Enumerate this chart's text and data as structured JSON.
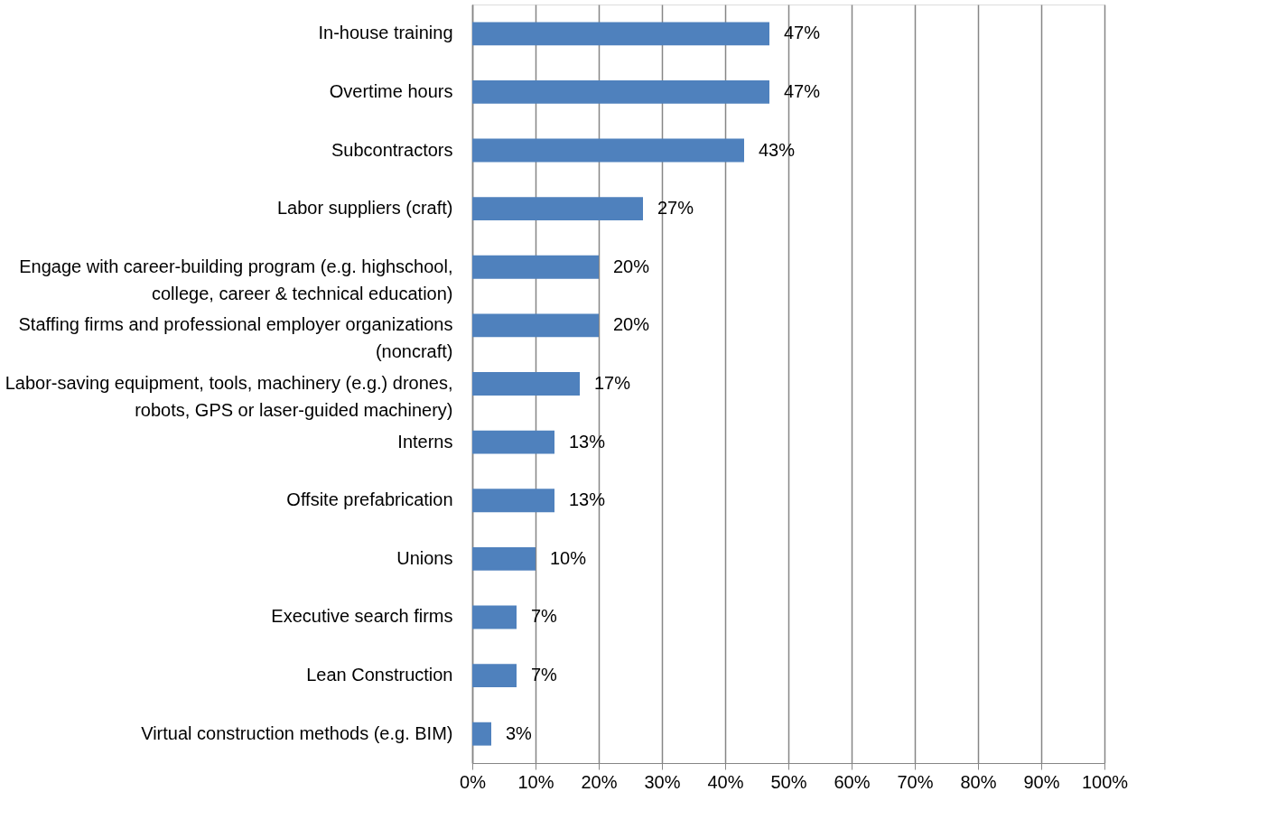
{
  "chart_data": {
    "type": "bar",
    "orientation": "horizontal",
    "categories": [
      "In-house training",
      "Overtime hours",
      "Subcontractors",
      "Labor suppliers (craft)",
      "Engage with career-building program (e.g. highschool,\ncollege, career & technical education)",
      "Staffing firms and professional employer organizations\n(noncraft)",
      "Labor-saving equipment, tools, machinery (e.g.) drones,\nrobots, GPS or laser-guided machinery)",
      "Interns",
      "Offsite prefabrication",
      "Unions",
      "Executive search firms",
      "Lean Construction",
      "Virtual construction methods (e.g. BIM)"
    ],
    "values": [
      47,
      47,
      43,
      27,
      20,
      20,
      17,
      13,
      13,
      10,
      7,
      7,
      3
    ],
    "value_labels": [
      "47%",
      "47%",
      "43%",
      "27%",
      "20%",
      "20%",
      "17%",
      "13%",
      "13%",
      "10%",
      "7%",
      "7%",
      "3%"
    ],
    "color": "#4f81bd",
    "xlim": [
      0,
      100
    ],
    "xticks": [
      {
        "value": 0,
        "label": "0%"
      },
      {
        "value": 10,
        "label": "10%"
      },
      {
        "value": 20,
        "label": "20%"
      },
      {
        "value": 30,
        "label": "30%"
      },
      {
        "value": 40,
        "label": "40%"
      },
      {
        "value": 50,
        "label": "50%"
      },
      {
        "value": 60,
        "label": "60%"
      },
      {
        "value": 70,
        "label": "70%"
      },
      {
        "value": 80,
        "label": "80%"
      },
      {
        "value": 90,
        "label": "90%"
      },
      {
        "value": 100,
        "label": "100%"
      }
    ],
    "grid": "x"
  }
}
